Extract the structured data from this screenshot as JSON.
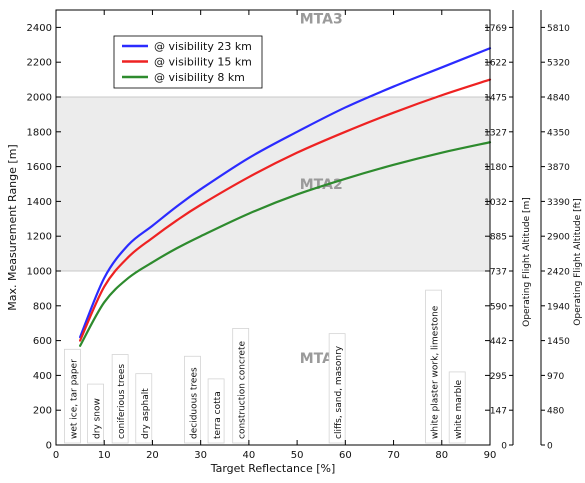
{
  "chart_data": {
    "type": "line",
    "xlabel": "Target Reflectance [%]",
    "ylabel": "Max. Measurement Range [m]",
    "right_label_m": "Operating Flight Altitude [m]",
    "right_label_ft": "Operating Flight Altitude [ft]",
    "xlim": [
      0,
      90
    ],
    "ylim": [
      0,
      2500
    ],
    "x_ticks": [
      0,
      10,
      20,
      30,
      40,
      50,
      60,
      70,
      80,
      90
    ],
    "y_ticks": [
      0,
      200,
      400,
      600,
      800,
      1000,
      1200,
      1400,
      1600,
      1800,
      2000,
      2200,
      2400
    ],
    "right_ticks_m": [
      "0",
      "147",
      "295",
      "442",
      "590",
      "737",
      "885",
      "1032",
      "1180",
      "1327",
      "1475",
      "1622",
      "1769"
    ],
    "right_ticks_ft": [
      {
        "label": "0",
        "value": 0
      },
      {
        "label": "480",
        "value": 200
      },
      {
        "label": "970",
        "value": 400
      },
      {
        "label": "1450",
        "value": 600
      },
      {
        "label": "1940",
        "value": 800
      },
      {
        "label": "2420",
        "value": 1000
      },
      {
        "label": "2900",
        "value": 1200
      },
      {
        "label": "3390",
        "value": 1400
      },
      {
        "label": "3870",
        "value": 1600
      },
      {
        "label": "4350",
        "value": 1800
      },
      {
        "label": "4840",
        "value": 2000
      },
      {
        "label": "5320",
        "value": 2200
      },
      {
        "label": "5810",
        "value": 2400
      }
    ],
    "x": [
      5,
      10,
      15,
      20,
      25,
      30,
      40,
      50,
      60,
      70,
      80,
      90
    ],
    "series": [
      {
        "name": "@ visibility 23 km",
        "color": "#2b2bff",
        "values": [
          620,
          960,
          1150,
          1260,
          1370,
          1470,
          1650,
          1800,
          1940,
          2060,
          2170,
          2280
        ]
      },
      {
        "name": "@ visibility 15 km",
        "color": "#ee2222",
        "values": [
          600,
          910,
          1080,
          1190,
          1290,
          1380,
          1540,
          1680,
          1800,
          1910,
          2010,
          2100
        ]
      },
      {
        "name": "@ visibility 8 km",
        "color": "#2e8b2e",
        "values": [
          570,
          820,
          960,
          1050,
          1130,
          1200,
          1330,
          1440,
          1530,
          1610,
          1680,
          1740
        ]
      }
    ],
    "regions": [
      {
        "label": "MTA1",
        "y_from": 0,
        "y_to": 1000,
        "shaded": false,
        "label_y": 500
      },
      {
        "label": "MTA2",
        "y_from": 1000,
        "y_to": 2000,
        "shaded": true,
        "label_y": 1500
      },
      {
        "label": "MTA3",
        "y_from": 2000,
        "y_to": 2500,
        "shaded": false,
        "label_y": 2450
      }
    ],
    "surfaces": [
      {
        "label": "wet ice, tar paper",
        "x": 3.4,
        "top": 550
      },
      {
        "label": "dry snow",
        "x": 8.2,
        "top": 350
      },
      {
        "label": "coniferious trees",
        "x": 13.3,
        "top": 520
      },
      {
        "label": "dry asphalt",
        "x": 18.2,
        "top": 410
      },
      {
        "label": "deciduous trees",
        "x": 28.3,
        "top": 510
      },
      {
        "label": "terra cotta",
        "x": 33.2,
        "top": 380
      },
      {
        "label": "construction concrete",
        "x": 38.3,
        "top": 670
      },
      {
        "label": "cliffs, sand, masonry",
        "x": 58.3,
        "top": 640
      },
      {
        "label": "white plaster work, limestone",
        "x": 78.3,
        "top": 890
      },
      {
        "label": "white marble",
        "x": 83.2,
        "top": 420
      }
    ],
    "legend_position": "upper-left",
    "grid": false
  }
}
